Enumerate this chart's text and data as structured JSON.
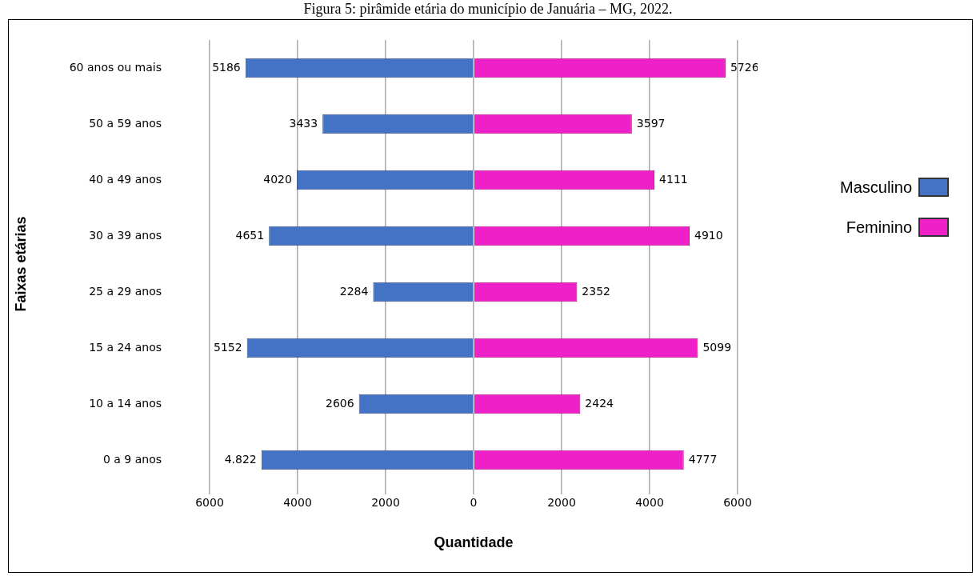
{
  "chart_data": [
    {
      "type": "bar",
      "orientation": "horizontal",
      "title": "Figura 5: pirâmide etária do município de Januária – MG, 2022.",
      "xlabel": "Quantidade",
      "ylabel": "Faixas etárias",
      "categories": [
        "60 anos ou mais",
        "50 a 59 anos",
        "40 a 49 anos",
        "30 a 39 anos",
        "25 a 29 anos",
        "15 a 24 anos",
        "10 a 14 anos",
        "0 a 9 anos"
      ],
      "series": [
        {
          "name": "Masculino",
          "color": "#4472c4",
          "values": [
            5186,
            3433,
            4020,
            4651,
            2284,
            5152,
            2606,
            4822
          ],
          "value_labels": [
            "5186",
            "3433",
            "4020",
            "4651",
            "2284",
            "5152",
            "2606",
            "4.822"
          ]
        }
      ],
      "xlim": [
        6000,
        0
      ],
      "xticks": [
        6000,
        4000,
        2000,
        {
          "value": 0,
          "label": null
        }
      ],
      "grid": "x",
      "legend": "right"
    },
    {
      "type": "bar",
      "orientation": "horizontal",
      "series": [
        {
          "name": "Feminino",
          "color": "#f020c8",
          "values": [
            5726,
            3597,
            4111,
            4910,
            2352,
            5099,
            2424,
            4777
          ],
          "data_labels": true
        }
      ],
      "xlim": [
        0,
        6000
      ],
      "xticks": [
        0,
        2000,
        4000,
        6000
      ],
      "grid": "x",
      "legend": "right",
      "tick_labels": "x"
    }
  ]
}
